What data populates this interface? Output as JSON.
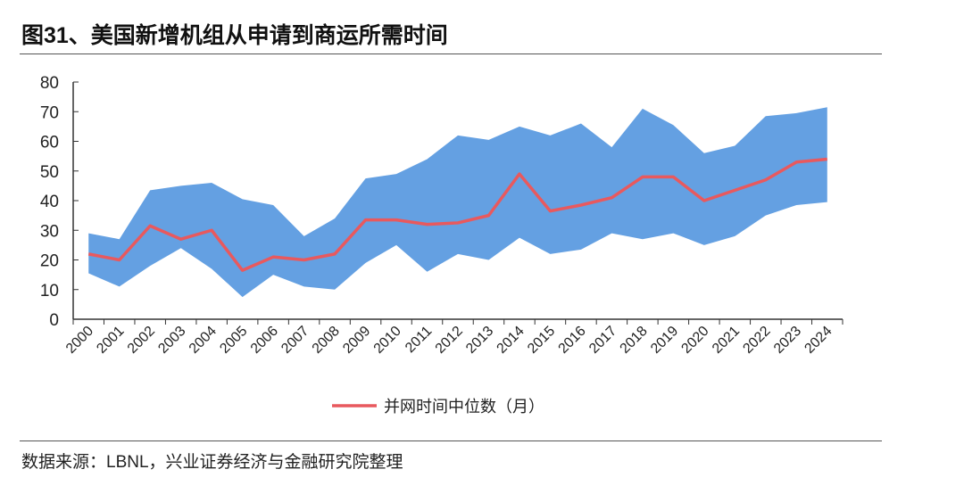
{
  "title": "图31、美国新增机组从申请到商运所需时间",
  "source": "数据来源：LBNL，兴业证券经济与金融研究院整理",
  "chart_data": {
    "type": "area",
    "categories": [
      "2000",
      "2001",
      "2002",
      "2003",
      "2004",
      "2005",
      "2006",
      "2007",
      "2008",
      "2009",
      "2010",
      "2011",
      "2012",
      "2013",
      "2014",
      "2015",
      "2016",
      "2017",
      "2018",
      "2019",
      "2020",
      "2021",
      "2022",
      "2023",
      "2024"
    ],
    "band": {
      "upper": [
        29,
        27,
        43.5,
        45,
        46,
        40.5,
        38.5,
        28,
        34,
        47.5,
        49,
        54,
        62,
        60.5,
        65,
        62,
        66,
        58,
        71,
        65.5,
        56,
        58.5,
        68.5,
        69.5,
        71.5
      ],
      "lower": [
        15.5,
        11,
        18,
        24,
        17,
        7.5,
        15,
        11,
        10,
        19,
        25,
        16,
        22,
        20,
        27.5,
        22,
        23.5,
        29,
        27,
        29,
        25,
        28,
        35,
        38.5,
        39.5
      ],
      "color": "#64a0e2"
    },
    "series": [
      {
        "name": "并网时间中位数（月）",
        "color": "#e8595e",
        "values": [
          22,
          20,
          31.5,
          27,
          30,
          16.5,
          21,
          20,
          22,
          33.5,
          33.5,
          32,
          32.5,
          35,
          49,
          36.5,
          38.5,
          41,
          48,
          48,
          40,
          43.5,
          47,
          53,
          54
        ]
      }
    ],
    "ylim": [
      0,
      80
    ],
    "yticks": [
      0,
      10,
      20,
      30,
      40,
      50,
      60,
      70,
      80
    ],
    "grid": false,
    "legend_position": "bottom"
  }
}
